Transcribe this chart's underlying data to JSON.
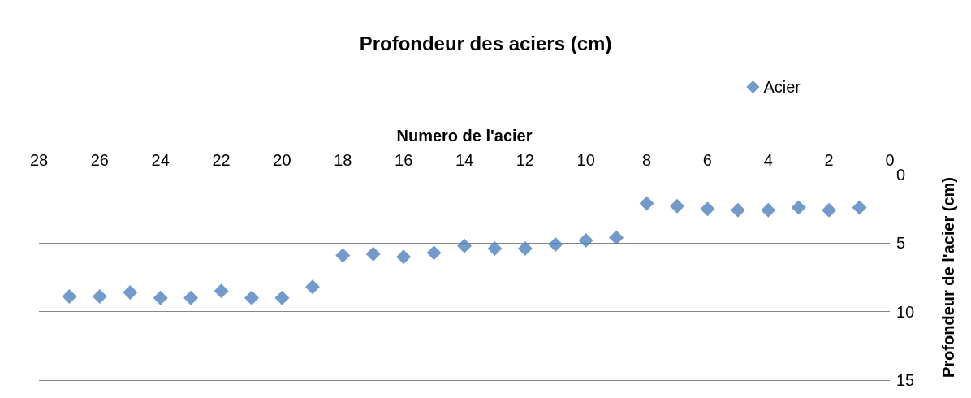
{
  "chart_data": {
    "type": "scatter",
    "title": "Profondeur des aciers (cm)",
    "xlabel": "Numero de l'acier",
    "ylabel": "Profondeur de l'acier (cm)",
    "x": [
      27,
      26,
      25,
      24,
      23,
      22,
      21,
      20,
      19,
      18,
      17,
      16,
      15,
      14,
      13,
      12,
      11,
      10,
      9,
      8,
      7,
      6,
      5,
      4,
      3,
      2,
      1
    ],
    "series": [
      {
        "name": "Acier",
        "color": "#4f81bd",
        "values": [
          8.9,
          8.9,
          8.6,
          9.0,
          9.0,
          8.5,
          9.0,
          9.0,
          8.2,
          5.9,
          5.8,
          6.0,
          5.7,
          5.2,
          5.4,
          5.4,
          5.1,
          4.8,
          4.6,
          2.1,
          2.3,
          2.5,
          2.6,
          2.6,
          2.4,
          2.6,
          2.4
        ]
      }
    ],
    "xlim": [
      28,
      0
    ],
    "xticks": [
      28,
      26,
      24,
      22,
      20,
      18,
      16,
      14,
      12,
      10,
      8,
      6,
      4,
      2,
      0
    ],
    "ylim": [
      15,
      0
    ],
    "yticks": [
      0,
      5,
      10,
      15
    ],
    "grid": "y",
    "legend": "top right",
    "marker": "diamond"
  }
}
